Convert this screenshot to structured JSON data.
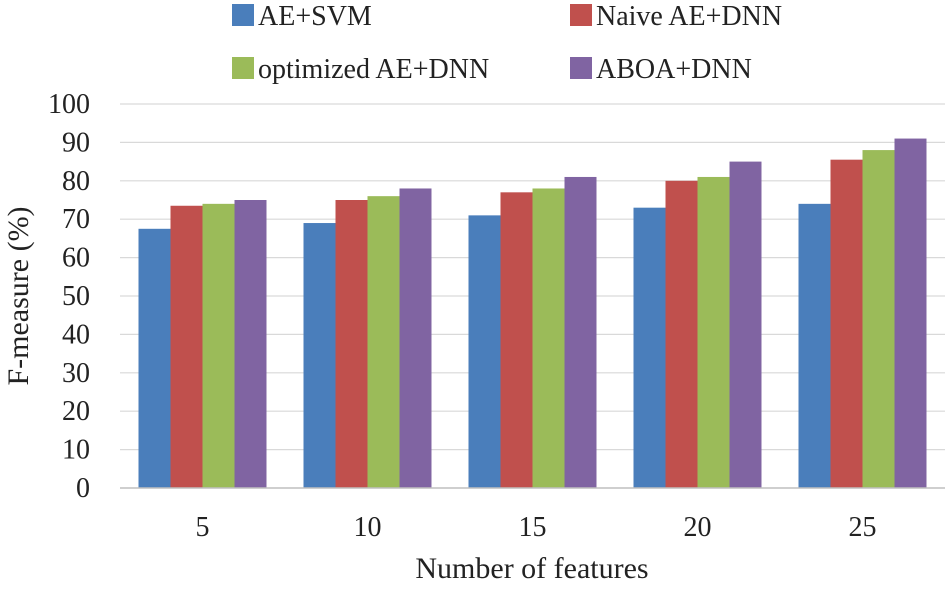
{
  "chart_data": {
    "type": "bar",
    "title": "",
    "xlabel": "Number of features",
    "ylabel": "F-measure (%)",
    "categories": [
      "5",
      "10",
      "15",
      "20",
      "25"
    ],
    "ylim": [
      0,
      100
    ],
    "yticks": [
      0,
      10,
      20,
      30,
      40,
      50,
      60,
      70,
      80,
      90,
      100
    ],
    "grid": true,
    "legend_position": "top",
    "series": [
      {
        "name": "AE+SVM",
        "color": "#4a7ebb",
        "values": [
          67.5,
          69,
          71,
          73,
          74
        ]
      },
      {
        "name": "Naive AE+DNN",
        "color": "#c0504d",
        "values": [
          73.5,
          75,
          77,
          80,
          85.5
        ]
      },
      {
        "name": "optimized AE+DNN",
        "color": "#9bbb59",
        "values": [
          74,
          76,
          78,
          81,
          88
        ]
      },
      {
        "name": "ABOA+DNN",
        "color": "#8064a2",
        "values": [
          75,
          78,
          81,
          85,
          91
        ]
      }
    ]
  }
}
